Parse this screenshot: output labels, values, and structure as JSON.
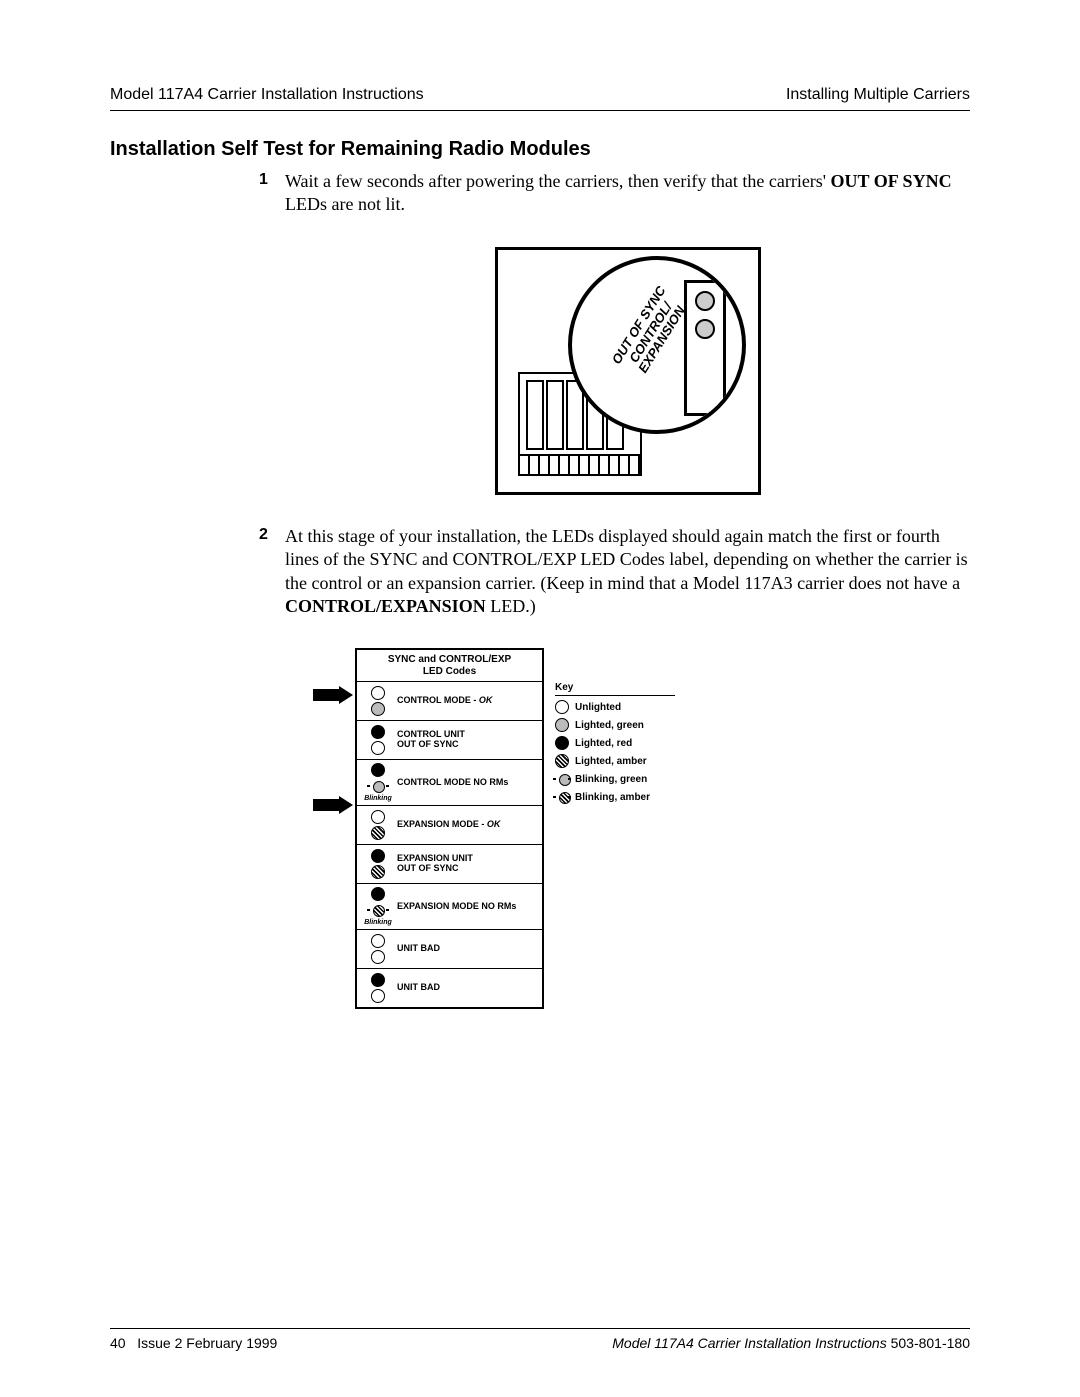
{
  "header": {
    "left": "Model 117A4 Carrier Installation Instructions",
    "right": "Installing Multiple Carriers"
  },
  "section_title": "Installation Self Test for Remaining Radio Modules",
  "steps": {
    "s1": {
      "num": "1",
      "pre": "Wait a few seconds after powering the carriers, then verify that the carriers' ",
      "bold1": "OUT OF SYNC",
      "post": " LEDs are not lit."
    },
    "s2": {
      "num": "2",
      "pre": "At this stage of your installation, the LEDs displayed should again match the first or fourth lines of the SYNC and CONTROL/EXP LED Codes label, depending on whether the carrier is the control or an expansion carrier. (Keep in mind that a Model 117A3 carrier does not have a ",
      "bold1": "CONTROL/EXPANSION",
      "post": " LED.)"
    }
  },
  "fig1": {
    "callout_lines": "OUT OF SYNC\nCONTROL/\nEXPANSION"
  },
  "codes": {
    "title_line1": "SYNC and CONTROL/EXP",
    "title_line2": "LED Codes",
    "rows": [
      {
        "led1": "unlit",
        "led2": "green",
        "label": "CONTROL MODE  -",
        "ok": "OK",
        "blinking": false
      },
      {
        "led1": "red",
        "led2": "unlit",
        "label": "CONTROL UNIT",
        "label2": "OUT OF SYNC",
        "blinking": false
      },
      {
        "led1": "red",
        "led2": "blink-g",
        "label": "CONTROL MODE NO RMs",
        "blinking": true
      },
      {
        "led1": "unlit",
        "led2": "amber",
        "label": "EXPANSION MODE  -",
        "ok": "OK",
        "blinking": false
      },
      {
        "led1": "red",
        "led2": "amber",
        "label": "EXPANSION UNIT",
        "label2": "OUT OF SYNC",
        "blinking": false
      },
      {
        "led1": "red",
        "led2": "blink-a",
        "label": "EXPANSION MODE NO RMs",
        "blinking": true
      },
      {
        "led1": "unlit",
        "led2": "unlit",
        "label": "UNIT BAD",
        "blinking": false
      },
      {
        "led1": "red",
        "led2": "unlit",
        "label": "UNIT BAD",
        "blinking": false
      }
    ],
    "blinking_text": "Blinking"
  },
  "key": {
    "title": "Key",
    "items": [
      {
        "sym": "unlit",
        "label": "Unlighted"
      },
      {
        "sym": "green",
        "label": "Lighted, green"
      },
      {
        "sym": "red",
        "label": "Lighted, red"
      },
      {
        "sym": "amber",
        "label": "Lighted, amber"
      },
      {
        "sym": "blink-g",
        "label": "Blinking, green"
      },
      {
        "sym": "blink-a",
        "label": "Blinking, amber"
      }
    ]
  },
  "footer": {
    "page": "40",
    "issue": "Issue 2  February 1999",
    "right_ital": "Model 117A4 Carrier Installation Instructions",
    "right_num": "  503-801-180"
  }
}
